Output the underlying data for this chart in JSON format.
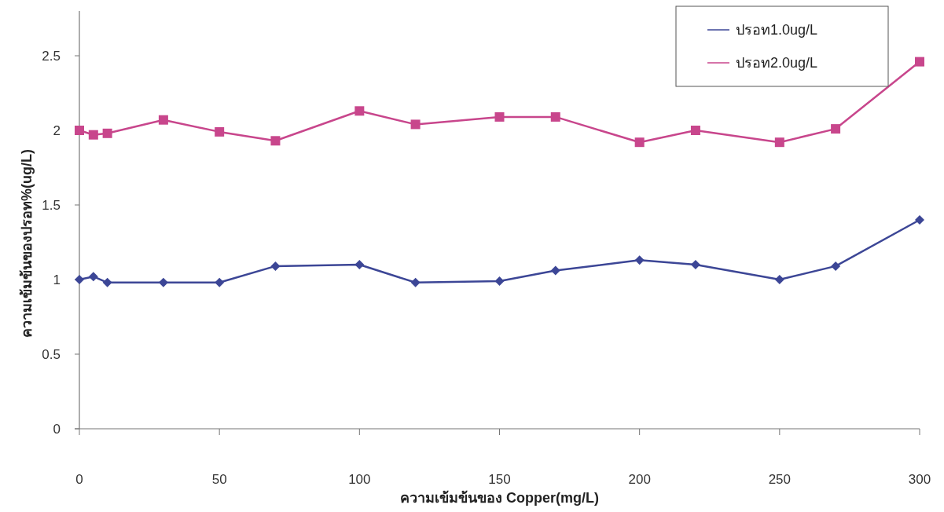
{
  "chart_data": {
    "type": "line",
    "xlabel": "ความเข้มข้นของ Copper(mg/L)",
    "ylabel": "ความเข้มข้นของปรอท%(ug/L)",
    "xlim": [
      0,
      300
    ],
    "xticks": [
      0,
      50,
      100,
      150,
      200,
      250,
      300
    ],
    "ylim": [
      0,
      2.8
    ],
    "yticks": [
      0,
      0.5,
      1,
      1.5,
      2,
      2.5
    ],
    "grid": false,
    "legend": "top right",
    "x": [
      0,
      5,
      10,
      30,
      50,
      70,
      100,
      120,
      150,
      170,
      200,
      220,
      250,
      270,
      300
    ],
    "series": [
      {
        "name": "ปรอท1.0ug/L",
        "color": "#3c4696",
        "marker": "diamond",
        "values": [
          1.0,
          1.02,
          0.98,
          0.98,
          0.98,
          1.09,
          1.1,
          0.98,
          0.99,
          1.06,
          1.13,
          1.1,
          1.0,
          1.09,
          1.4
        ]
      },
      {
        "name": "ปรอท2.0ug/L",
        "color": "#c8468c",
        "marker": "square",
        "values": [
          2.0,
          1.97,
          1.98,
          2.07,
          1.99,
          1.93,
          2.13,
          2.04,
          2.09,
          2.09,
          1.92,
          2.0,
          1.92,
          2.01,
          2.46
        ]
      }
    ]
  }
}
